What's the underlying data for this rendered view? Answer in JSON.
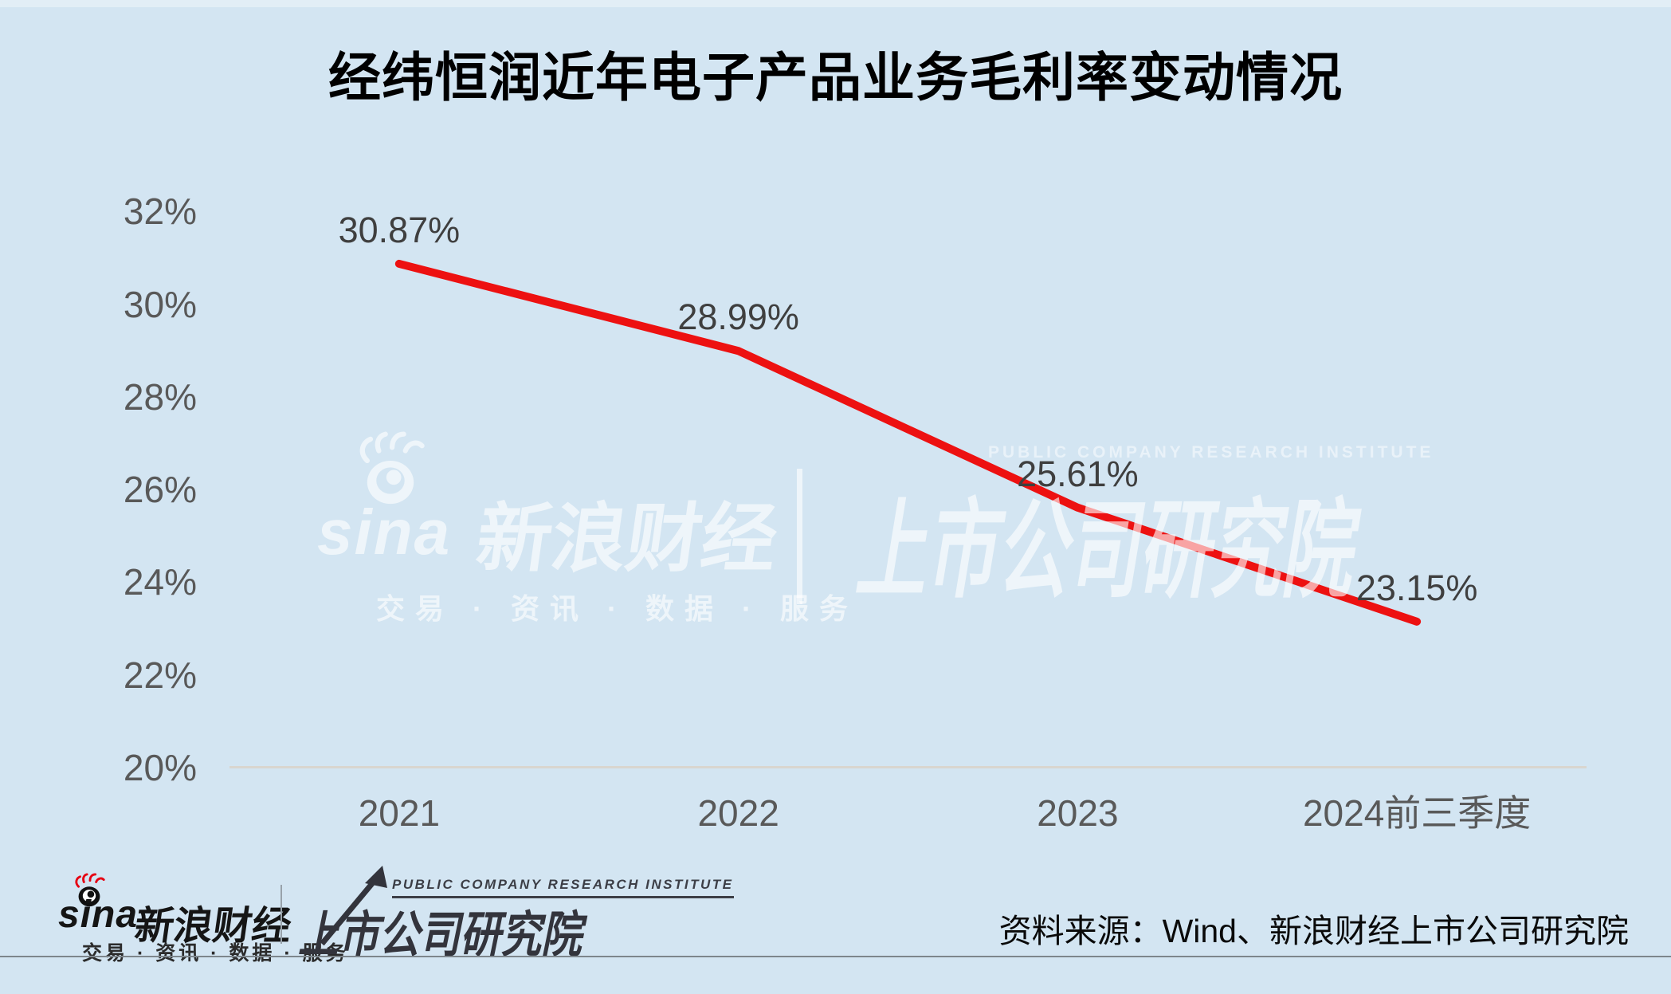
{
  "title": "经纬恒润近年电子产品业务毛利率变动情况",
  "chart_data": {
    "type": "line",
    "title": "经纬恒润近年电子产品业务毛利率变动情况",
    "categories": [
      "2021",
      "2022",
      "2023",
      "2024前三季度"
    ],
    "series": [
      {
        "name": "电子产品业务毛利率",
        "values": [
          30.87,
          28.99,
          25.61,
          23.15
        ]
      }
    ],
    "data_labels": [
      "30.87%",
      "28.99%",
      "25.61%",
      "23.15%"
    ],
    "ytick_values": [
      32,
      30,
      28,
      26,
      24,
      22,
      20
    ],
    "ytick_labels": [
      "32%",
      "30%",
      "28%",
      "26%",
      "24%",
      "22%",
      "20%"
    ],
    "ylim": [
      20,
      32
    ],
    "xlabel": "",
    "ylabel": "",
    "grid": false,
    "legend": "none",
    "line_color": "#ed1111"
  },
  "watermark": {
    "sina_word": "sina",
    "brand": "新浪财经",
    "tagline": "交易 · 资讯 · 数据 · 服务",
    "institute": "上市公司研究院",
    "institute_en": "PUBLIC COMPANY RESEARCH INSTITUTE"
  },
  "footer": {
    "sina_word": "sina",
    "brand": "新浪财经",
    "tagline": "交易 · 资讯 · 数据 · 服务",
    "institute": "上市公司研究院",
    "institute_en": "PUBLIC COMPANY RESEARCH INSTITUTE",
    "source": "资料来源：Wind、新浪财经上市公司研究院"
  },
  "colors": {
    "background": "#d3e5f2",
    "line": "#ed1111",
    "axis_text": "#595959",
    "data_label_text": "#3f3f3f",
    "title_text": "#000000",
    "sina_flame_red": "#e60012"
  }
}
